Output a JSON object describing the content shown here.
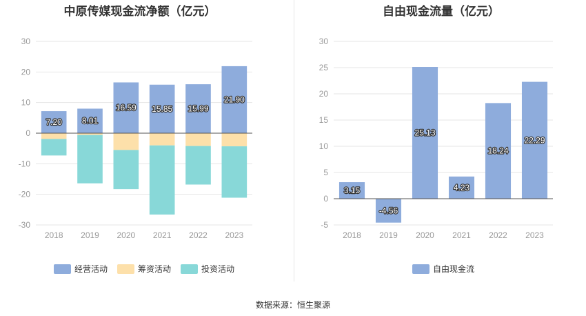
{
  "source_text": "数据来源：恒生聚源",
  "chart_data": [
    {
      "type": "bar",
      "stacked": true,
      "title": "中原传媒现金流净额（亿元）",
      "categories": [
        "2018",
        "2019",
        "2020",
        "2021",
        "2022",
        "2023"
      ],
      "ylim": [
        -30,
        30
      ],
      "yticks": [
        -30,
        -20,
        -10,
        0,
        10,
        20,
        30
      ],
      "grid": true,
      "legend_position": "bottom",
      "series": [
        {
          "name": "经营活动",
          "color": "#8eacdc",
          "values": [
            7.2,
            8.01,
            16.59,
            15.85,
            15.99,
            21.9
          ],
          "labels": [
            "7.20",
            "8.01",
            "16.59",
            "15.85",
            "15.99",
            "21.90"
          ]
        },
        {
          "name": "筹资活动",
          "color": "#fde0aa",
          "values": [
            -1.9,
            -0.6,
            -5.5,
            -4.0,
            -4.2,
            -4.3
          ]
        },
        {
          "name": "投资活动",
          "color": "#88d8d8",
          "values": [
            -5.4,
            -15.8,
            -12.8,
            -22.6,
            -12.6,
            -16.8
          ]
        }
      ]
    },
    {
      "type": "bar",
      "title": "自由现金流量（亿元）",
      "categories": [
        "2018",
        "2019",
        "2020",
        "2021",
        "2022",
        "2023"
      ],
      "ylim": [
        -5,
        30
      ],
      "yticks": [
        -5,
        0,
        5,
        10,
        15,
        20,
        25,
        30
      ],
      "grid": true,
      "legend_position": "bottom",
      "series": [
        {
          "name": "自由现金流",
          "color": "#8eacdc",
          "values": [
            3.15,
            -4.56,
            25.13,
            4.23,
            18.24,
            22.29
          ],
          "labels": [
            "3.15",
            "-4.56",
            "25.13",
            "4.23",
            "18.24",
            "22.29"
          ]
        }
      ]
    }
  ]
}
